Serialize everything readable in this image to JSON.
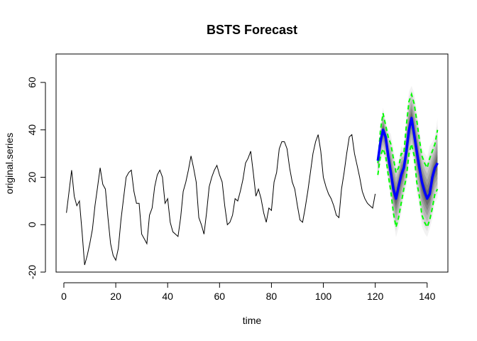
{
  "chart_data": {
    "type": "line",
    "title": "BSTS Forecast",
    "xlabel": "time",
    "ylabel": "original.series",
    "xlim": [
      -3,
      148
    ],
    "ylim": [
      -20,
      72
    ],
    "x_ticks": [
      0,
      20,
      40,
      60,
      80,
      100,
      120,
      140
    ],
    "y_ticks": [
      -20,
      0,
      20,
      40,
      60
    ],
    "grid": false,
    "legend": "none",
    "series": [
      {
        "role": "history",
        "color": "#000000",
        "x": [
          1,
          2,
          3,
          4,
          5,
          6,
          7,
          8,
          9,
          10,
          11,
          12,
          13,
          14,
          15,
          16,
          17,
          18,
          19,
          20,
          21,
          22,
          23,
          24,
          25,
          26,
          27,
          28,
          29,
          30,
          31,
          32,
          33,
          34,
          35,
          36,
          37,
          38,
          39,
          40,
          41,
          42,
          43,
          44,
          45,
          46,
          47,
          48,
          49,
          50,
          51,
          52,
          53,
          54,
          55,
          56,
          57,
          58,
          59,
          60,
          61,
          62,
          63,
          64,
          65,
          66,
          67,
          68,
          69,
          70,
          71,
          72,
          73,
          74,
          75,
          76,
          77,
          78,
          79,
          80,
          81,
          82,
          83,
          84,
          85,
          86,
          87,
          88,
          89,
          90,
          91,
          92,
          93,
          94,
          95,
          96,
          97,
          98,
          99,
          100,
          101,
          102,
          103,
          104,
          105,
          106,
          107,
          108,
          109,
          110,
          111,
          112,
          113,
          114,
          115,
          116,
          117,
          118,
          119,
          120
        ],
        "y": [
          5,
          14,
          23,
          12,
          8,
          10,
          -3,
          -17,
          -13,
          -8,
          -2,
          8,
          16,
          24,
          17,
          15,
          3,
          -8,
          -13,
          -15,
          -10,
          2,
          11,
          20,
          22,
          23,
          14,
          9,
          9,
          -4,
          -6,
          -8,
          4,
          7,
          16,
          21,
          23,
          20,
          9,
          11,
          1,
          -3,
          -4,
          -5,
          3,
          14,
          18,
          23,
          29,
          24,
          18,
          3,
          0,
          -4,
          5,
          16,
          20,
          23,
          25,
          21,
          18,
          8,
          0,
          1,
          4,
          11,
          10,
          14,
          19,
          26,
          28,
          31,
          22,
          12,
          15,
          11,
          5,
          1,
          7,
          6,
          18,
          22,
          32,
          35,
          35,
          32,
          24,
          18,
          15,
          8,
          2,
          1,
          7,
          14,
          22,
          30,
          35,
          38,
          31,
          20,
          16,
          13,
          11,
          8,
          4,
          3,
          15,
          22,
          30,
          37,
          38,
          30,
          25,
          20,
          14,
          11,
          9,
          8,
          7,
          13
        ]
      },
      {
        "role": "forecast-median",
        "color": "#0000ff",
        "x": [
          121,
          122,
          123,
          124,
          125,
          126,
          127,
          128,
          129,
          130,
          131,
          132,
          133,
          134,
          135,
          136,
          137,
          138,
          139,
          140,
          141,
          142,
          143,
          144
        ],
        "y": [
          27,
          35,
          40,
          37,
          29,
          22,
          15,
          11,
          16,
          21,
          24,
          31,
          40,
          45,
          38,
          31,
          24,
          18,
          14,
          11,
          13,
          20,
          24,
          26
        ]
      },
      {
        "role": "interval-upper",
        "color": "#00ff00",
        "x": [
          121,
          122,
          123,
          124,
          125,
          126,
          127,
          128,
          129,
          130,
          131,
          132,
          133,
          134,
          135,
          136,
          137,
          138,
          139,
          140,
          141,
          142,
          143,
          144
        ],
        "y": [
          26,
          40,
          47,
          42,
          37,
          34,
          28,
          22,
          24,
          30,
          30,
          42,
          52,
          55,
          51,
          44,
          36,
          29,
          26,
          24,
          28,
          31,
          34,
          40
        ]
      },
      {
        "role": "interval-lower",
        "color": "#00ff00",
        "x": [
          121,
          122,
          123,
          124,
          125,
          126,
          127,
          128,
          129,
          130,
          131,
          132,
          133,
          134,
          135,
          136,
          137,
          138,
          139,
          140,
          141,
          142,
          143,
          144
        ],
        "y": [
          21,
          29,
          32,
          29,
          21,
          14,
          5,
          -1,
          3,
          9,
          15,
          20,
          30,
          34,
          29,
          18,
          12,
          4,
          1,
          -1,
          2,
          7,
          13,
          15
        ]
      }
    ]
  }
}
